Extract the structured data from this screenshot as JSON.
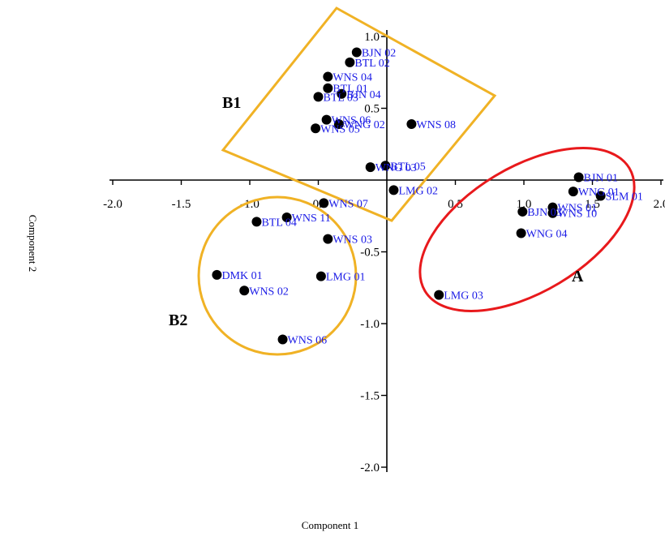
{
  "chart_data": {
    "type": "scatter",
    "xlabel": "Component 1",
    "ylabel": "Component 2",
    "xlim": [
      -2.0,
      2.0
    ],
    "ylim": [
      -2.0,
      1.0
    ],
    "x_ticks": [
      -2.0,
      -1.5,
      -1.0,
      -0.5,
      0.5,
      1.0,
      1.5,
      2.0
    ],
    "y_ticks": [
      1.0,
      0.5,
      -0.5,
      -1.0,
      -1.5,
      -2.0
    ],
    "x_tick_labels": [
      "-2.0",
      "-1.5",
      "-1.0",
      "-0.5",
      "0.5",
      "1.0",
      "1.5",
      "2.0"
    ],
    "y_tick_labels": [
      "1.0",
      "0.5",
      "-0.5",
      "-1.0",
      "-1.5",
      "-2.0"
    ],
    "points": [
      {
        "label": "BJN 02",
        "x": -0.22,
        "y": 0.89
      },
      {
        "label": "BTL 02",
        "x": -0.27,
        "y": 0.82
      },
      {
        "label": "WNS 04",
        "x": -0.43,
        "y": 0.72
      },
      {
        "label": "BTL 01",
        "x": -0.43,
        "y": 0.64
      },
      {
        "label": "BJN 04",
        "x": -0.33,
        "y": 0.6
      },
      {
        "label": "BTL 03",
        "x": -0.5,
        "y": 0.58
      },
      {
        "label": "WNS 06",
        "x": -0.44,
        "y": 0.42
      },
      {
        "label": "WNG 02",
        "x": -0.35,
        "y": 0.39
      },
      {
        "label": "WNS 05",
        "x": -0.52,
        "y": 0.36
      },
      {
        "label": "WNS 08",
        "x": 0.18,
        "y": 0.39
      },
      {
        "label": "BTL 05",
        "x": -0.01,
        "y": 0.1
      },
      {
        "label": "WNG 03",
        "x": -0.12,
        "y": 0.09
      },
      {
        "label": "LMG 02",
        "x": 0.05,
        "y": -0.07
      },
      {
        "label": "BJN 01",
        "x": 1.4,
        "y": 0.02
      },
      {
        "label": "WNG 01",
        "x": 1.36,
        "y": -0.08
      },
      {
        "label": "SLM 01",
        "x": 1.56,
        "y": -0.11
      },
      {
        "label": "WNS 01",
        "x": 1.21,
        "y": -0.19
      },
      {
        "label": "BJN 03",
        "x": 0.99,
        "y": -0.22
      },
      {
        "label": "WNS 10",
        "x": 1.21,
        "y": -0.23
      },
      {
        "label": "WNG 04",
        "x": 0.98,
        "y": -0.37
      },
      {
        "label": "LMG 03",
        "x": 0.38,
        "y": -0.8
      },
      {
        "label": "WNS 07",
        "x": -0.46,
        "y": -0.16
      },
      {
        "label": "WNS 11",
        "x": -0.73,
        "y": -0.26
      },
      {
        "label": "BTL 04",
        "x": -0.95,
        "y": -0.29
      },
      {
        "label": "WNS 03",
        "x": -0.43,
        "y": -0.41
      },
      {
        "label": "DMK 01",
        "x": -1.24,
        "y": -0.66
      },
      {
        "label": "LMG 01",
        "x": -0.48,
        "y": -0.67
      },
      {
        "label": "WNS 02",
        "x": -1.04,
        "y": -0.77
      },
      {
        "label": "WNS 06",
        "x": -0.76,
        "y": -1.11
      }
    ],
    "groups": [
      {
        "label": "A",
        "color": "#e8191c"
      },
      {
        "label": "B1",
        "color": "#f0b225"
      },
      {
        "label": "B2",
        "color": "#f0b225"
      }
    ],
    "point_color": "#000000",
    "label_color": "#1a1ae6",
    "grid": false,
    "legend": "none"
  }
}
